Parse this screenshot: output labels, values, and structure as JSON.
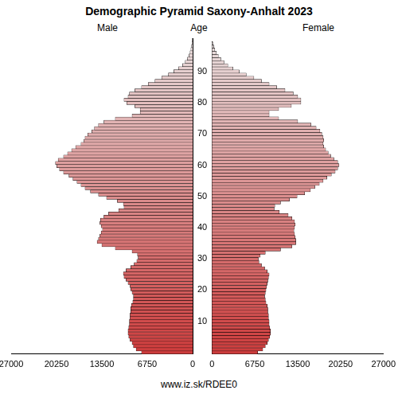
{
  "chart_data": {
    "type": "bar",
    "title": "Demographic Pyramid Saxony-Anhalt 2023",
    "ylabel": "Age",
    "source": "www.iz.sk/RDEE0",
    "orientation": "horizontal",
    "grid": false,
    "categories": [
      null,
      null,
      null,
      null,
      null,
      null,
      null,
      null,
      null,
      null,
      10,
      null,
      null,
      null,
      null,
      null,
      null,
      null,
      null,
      null,
      20,
      null,
      null,
      null,
      null,
      null,
      null,
      null,
      null,
      null,
      30,
      null,
      null,
      null,
      null,
      null,
      null,
      null,
      null,
      null,
      40,
      null,
      null,
      null,
      null,
      null,
      null,
      null,
      null,
      null,
      50,
      null,
      null,
      null,
      null,
      null,
      null,
      null,
      null,
      null,
      60,
      null,
      null,
      null,
      null,
      null,
      null,
      null,
      null,
      null,
      70,
      null,
      null,
      null,
      null,
      null,
      null,
      null,
      null,
      null,
      80,
      null,
      null,
      null,
      null,
      null,
      null,
      null,
      null,
      null,
      90,
      null,
      null,
      null,
      null,
      null,
      null,
      null,
      null,
      null
    ],
    "series": [
      {
        "name": "Male",
        "values": [
          7600,
          8400,
          8800,
          9000,
          9300,
          9500,
          9600,
          9600,
          9500,
          9400,
          9400,
          9300,
          9300,
          9200,
          9200,
          9100,
          8900,
          8800,
          8800,
          9000,
          9200,
          9300,
          9600,
          9900,
          10200,
          10300,
          9900,
          9200,
          8700,
          8300,
          8100,
          8200,
          9000,
          11500,
          13500,
          14200,
          14000,
          13800,
          13600,
          13400,
          13600,
          13800,
          13700,
          13200,
          12500,
          11000,
          10200,
          10300,
          11200,
          12800,
          14000,
          15200,
          16000,
          16600,
          17200,
          17800,
          18400,
          19200,
          19800,
          20200,
          20400,
          20000,
          19200,
          18600,
          18000,
          17400,
          16600,
          16200,
          16000,
          15600,
          15000,
          14600,
          14000,
          13200,
          11500,
          9000,
          7800,
          7800,
          8600,
          9800,
          10200,
          9600,
          9400,
          8600,
          7600,
          6600,
          5600,
          4600,
          3600,
          2800,
          2100,
          1500,
          1100,
          800,
          550,
          380,
          250,
          160,
          100,
          60
        ]
      },
      {
        "name": "Female",
        "values": [
          7200,
          8000,
          8400,
          8700,
          8900,
          9100,
          9200,
          9200,
          9100,
          9000,
          9000,
          8900,
          8900,
          8800,
          8800,
          8700,
          8500,
          8400,
          8300,
          8400,
          8500,
          8600,
          8700,
          8800,
          8900,
          9000,
          8700,
          8300,
          7800,
          7400,
          7300,
          7600,
          8400,
          10800,
          12600,
          13200,
          13200,
          13100,
          13000,
          12900,
          13000,
          13100,
          13000,
          12600,
          12000,
          10600,
          9800,
          9900,
          10800,
          12200,
          13400,
          14600,
          15500,
          16200,
          16900,
          17500,
          18100,
          18800,
          19400,
          19800,
          20000,
          19800,
          19200,
          18700,
          18300,
          17900,
          17600,
          17500,
          17600,
          17500,
          17300,
          17000,
          16400,
          15600,
          13500,
          10500,
          9000,
          9000,
          10500,
          12500,
          14000,
          14000,
          13500,
          12800,
          11500,
          10200,
          9000,
          7800,
          6600,
          5400,
          4300,
          3300,
          2500,
          1900,
          1400,
          1000,
          700,
          450,
          300,
          200
        ]
      }
    ],
    "xlim": [
      0,
      27000
    ],
    "xticks": [
      0,
      6750,
      13500,
      20250,
      27000
    ]
  }
}
